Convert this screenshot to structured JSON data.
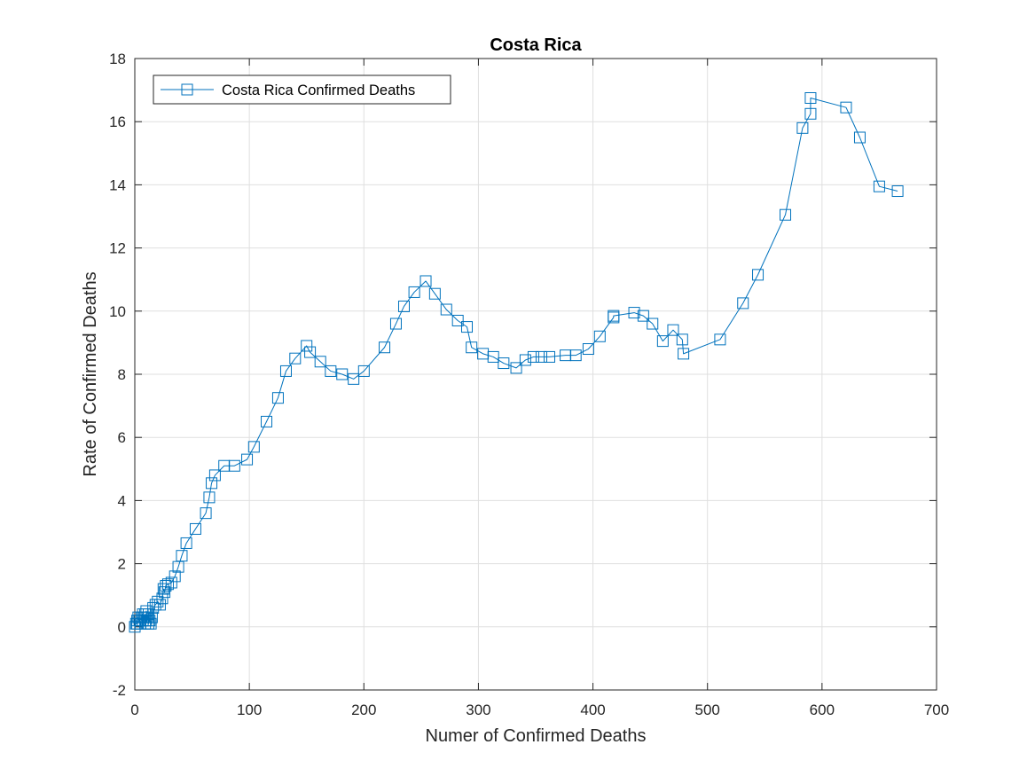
{
  "chart_data": {
    "type": "line",
    "title": "Costa Rica",
    "xlabel": "Numer of Confirmed Deaths",
    "ylabel": "Rate of Confirmed Deaths",
    "xlim": [
      0,
      700
    ],
    "ylim": [
      -2,
      18
    ],
    "xticks": [
      0,
      100,
      200,
      300,
      400,
      500,
      600,
      700
    ],
    "yticks": [
      -2,
      0,
      2,
      4,
      6,
      8,
      10,
      12,
      14,
      16,
      18
    ],
    "grid": true,
    "legend_position": "top-left",
    "marker": "square",
    "color": "#0072BD",
    "series": [
      {
        "name": "Costa Rica Confirmed Deaths",
        "points": [
          [
            0,
            0
          ],
          [
            1,
            0.1
          ],
          [
            2,
            0.1
          ],
          [
            2,
            0.2
          ],
          [
            3,
            0.3
          ],
          [
            4,
            0.2
          ],
          [
            5,
            0.1
          ],
          [
            6,
            0.3
          ],
          [
            7,
            0.2
          ],
          [
            7,
            0.4
          ],
          [
            8,
            0.3
          ],
          [
            9,
            0.1
          ],
          [
            9,
            0.4
          ],
          [
            10,
            0.2
          ],
          [
            10,
            0.5
          ],
          [
            11,
            0.3
          ],
          [
            12,
            0.1
          ],
          [
            12,
            0.4
          ],
          [
            13,
            0.2
          ],
          [
            14,
            0.1
          ],
          [
            15,
            0.3
          ],
          [
            16,
            0.6
          ],
          [
            18,
            0.7
          ],
          [
            20,
            0.8
          ],
          [
            22,
            0.7
          ],
          [
            24,
            0.9
          ],
          [
            25,
            1.2
          ],
          [
            26,
            1.1
          ],
          [
            27,
            1.3
          ],
          [
            29,
            1.35
          ],
          [
            32,
            1.4
          ],
          [
            35,
            1.6
          ],
          [
            38,
            1.9
          ],
          [
            41,
            2.25
          ],
          [
            45,
            2.65
          ],
          [
            53,
            3.1
          ],
          [
            62,
            3.6
          ],
          [
            65,
            4.1
          ],
          [
            67,
            4.55
          ],
          [
            70,
            4.8
          ],
          [
            78,
            5.1
          ],
          [
            87,
            5.1
          ],
          [
            98,
            5.3
          ],
          [
            104,
            5.7
          ],
          [
            115,
            6.5
          ],
          [
            125,
            7.25
          ],
          [
            132,
            8.1
          ],
          [
            140,
            8.5
          ],
          [
            150,
            8.9
          ],
          [
            153,
            8.7
          ],
          [
            162,
            8.4
          ],
          [
            171,
            8.1
          ],
          [
            181,
            8.0
          ],
          [
            191,
            7.85
          ],
          [
            200,
            8.1
          ],
          [
            218,
            8.85
          ],
          [
            228,
            9.6
          ],
          [
            235,
            10.15
          ],
          [
            244,
            10.6
          ],
          [
            254,
            10.95
          ],
          [
            262,
            10.55
          ],
          [
            272,
            10.05
          ],
          [
            282,
            9.7
          ],
          [
            290,
            9.5
          ],
          [
            294,
            8.85
          ],
          [
            304,
            8.65
          ],
          [
            313,
            8.55
          ],
          [
            322,
            8.35
          ],
          [
            333,
            8.2
          ],
          [
            341,
            8.45
          ],
          [
            348,
            8.55
          ],
          [
            355,
            8.55
          ],
          [
            362,
            8.55
          ],
          [
            376,
            8.6
          ],
          [
            385,
            8.6
          ],
          [
            396,
            8.8
          ],
          [
            406,
            9.2
          ],
          [
            418,
            9.8
          ],
          [
            418,
            9.85
          ],
          [
            436,
            9.95
          ],
          [
            444,
            9.85
          ],
          [
            452,
            9.6
          ],
          [
            461,
            9.05
          ],
          [
            470,
            9.4
          ],
          [
            478,
            9.1
          ],
          [
            479,
            8.65
          ],
          [
            511,
            9.1
          ],
          [
            531,
            10.25
          ],
          [
            544,
            11.15
          ],
          [
            568,
            13.05
          ],
          [
            583,
            15.8
          ],
          [
            590,
            16.25
          ],
          [
            590,
            16.75
          ],
          [
            621,
            16.45
          ],
          [
            633,
            15.5
          ],
          [
            650,
            13.95
          ],
          [
            666,
            13.8
          ]
        ]
      }
    ]
  }
}
